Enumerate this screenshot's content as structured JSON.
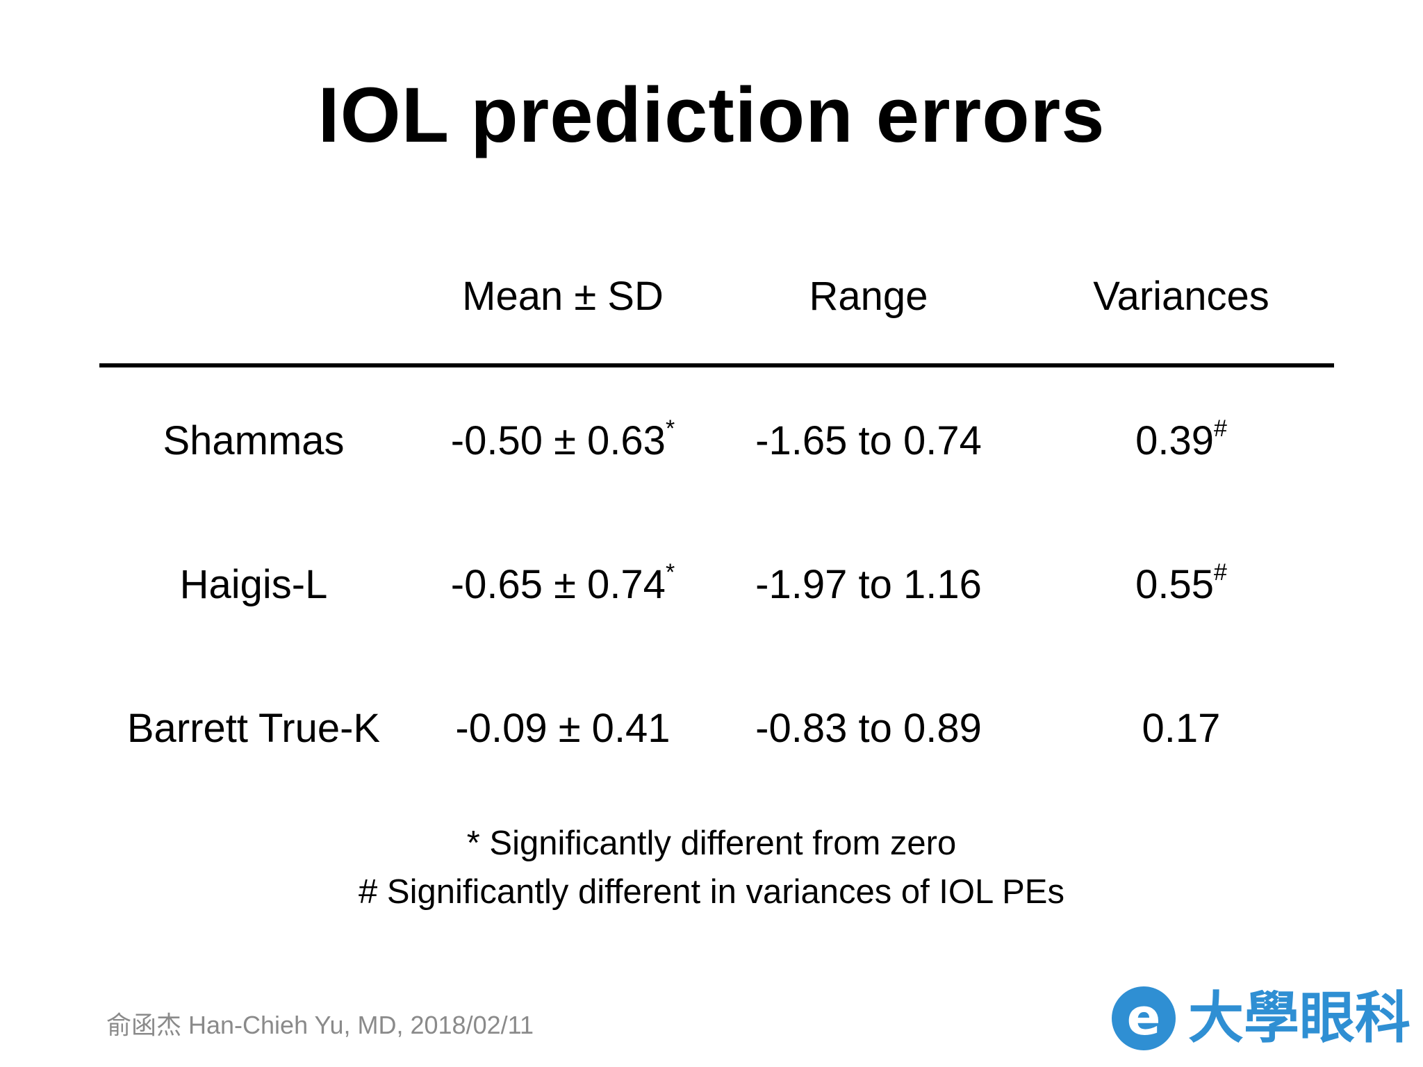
{
  "slide": {
    "title": "IOL prediction errors"
  },
  "table": {
    "headers": {
      "mean_sd": "Mean ± SD",
      "range": "Range",
      "variances": "Variances"
    },
    "rows": [
      {
        "name": "Shammas",
        "mean_sd": "-0.50 ± 0.63",
        "mean_sd_mark": "*",
        "range": "-1.65 to 0.74",
        "variance": "0.39",
        "variance_mark": "#"
      },
      {
        "name": "Haigis-L",
        "mean_sd": "-0.65 ± 0.74",
        "mean_sd_mark": "*",
        "range": "-1.97 to 1.16",
        "variance": "0.55",
        "variance_mark": "#"
      },
      {
        "name": "Barrett True-K",
        "mean_sd": "-0.09 ± 0.41",
        "mean_sd_mark": "",
        "range": "-0.83 to 0.89",
        "variance": "0.17",
        "variance_mark": ""
      }
    ]
  },
  "footnotes": {
    "asterisk": "* Significantly different from zero",
    "hash": "# Significantly different in variances of IOL PEs"
  },
  "credit": "俞函杰 Han-Chieh Yu, MD, 2018/02/11",
  "logo": {
    "badge_letter": "e",
    "text": "大學眼科",
    "color": "#2f8fd3"
  }
}
